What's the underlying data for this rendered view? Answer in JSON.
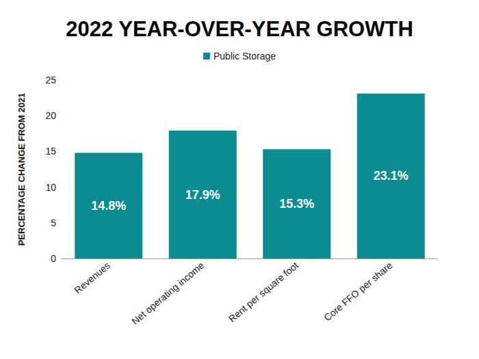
{
  "chart_data": {
    "type": "bar",
    "title": "2022 YEAR-OVER-YEAR GROWTH",
    "y_label": "PERCENTAGE CHANGE FROM 2021",
    "categories": [
      "Revenues",
      "Net operating income",
      "Rent per square foot",
      "Core FFO per share"
    ],
    "series": [
      {
        "name": "Public Storage",
        "color": "#0b8c90",
        "values": [
          14.8,
          17.9,
          15.3,
          23.1
        ],
        "value_labels": [
          "14.8%",
          "17.9%",
          "15.3%",
          "23.1%"
        ]
      }
    ],
    "ylim": [
      0,
      25
    ],
    "yticks": [
      0,
      5,
      10,
      15,
      20,
      25
    ],
    "grid": false,
    "legend": "top",
    "data_labels": true
  }
}
